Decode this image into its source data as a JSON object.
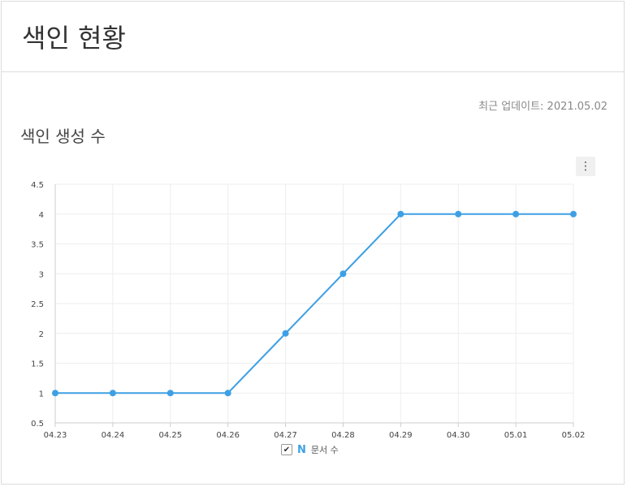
{
  "header": {
    "title": "색인 현황"
  },
  "last_update": "최근 업데이트: 2021.05.02",
  "chart_title": "색인 생성 수",
  "menu": {
    "icon": "vertical-ellipsis-icon",
    "glyph": "⋮"
  },
  "legend": {
    "checked": true,
    "check_glyph": "✔",
    "symbol_glyph": "N",
    "label": "문서 수"
  },
  "colors": {
    "series": "#3ea0e4",
    "grid": "#eeeeee",
    "axis": "#cccccc"
  },
  "chart_data": {
    "type": "line",
    "title": "색인 생성 수",
    "categories": [
      "04.23",
      "04.24",
      "04.25",
      "04.26",
      "04.27",
      "04.28",
      "04.29",
      "04.30",
      "05.01",
      "05.02"
    ],
    "series": [
      {
        "name": "문서 수",
        "values": [
          1,
          1,
          1,
          1,
          2,
          3,
          4,
          4,
          4,
          4
        ]
      }
    ],
    "ylim": [
      0.5,
      4.5
    ],
    "yticks": [
      "0.5",
      "1",
      "1.5",
      "2",
      "2.5",
      "3",
      "3.5",
      "4",
      "4.5"
    ],
    "grid": true,
    "legend_position": "bottom-center"
  }
}
